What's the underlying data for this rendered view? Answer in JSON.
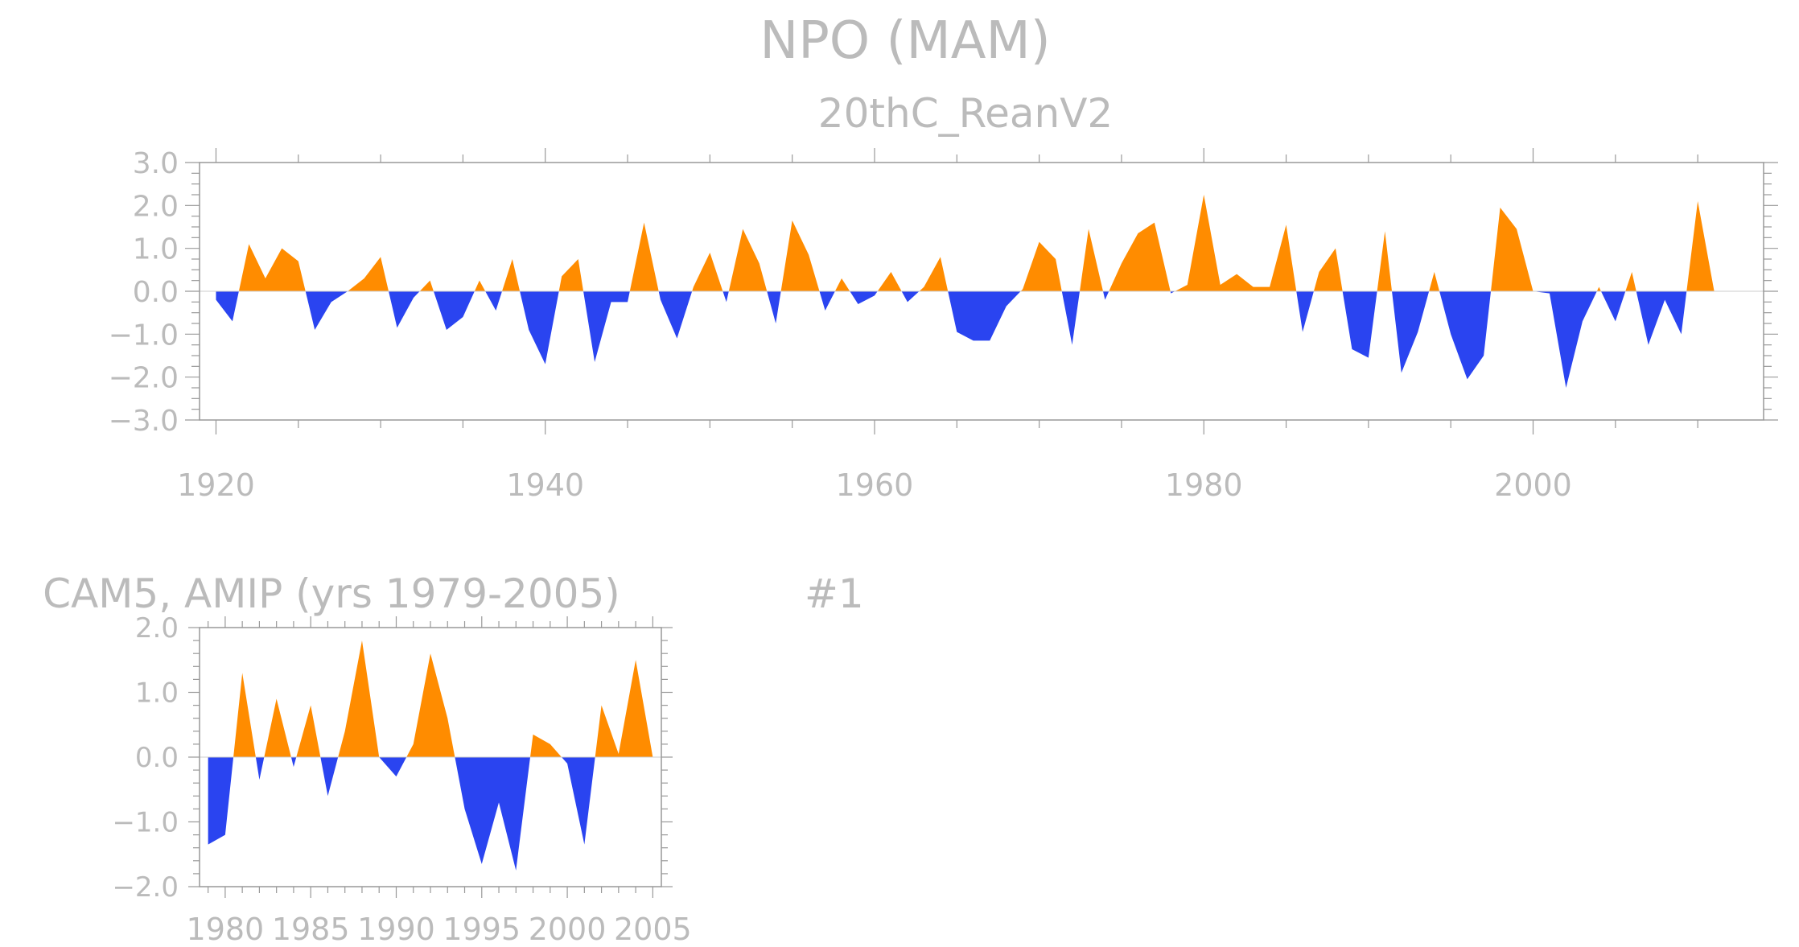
{
  "title": "NPO (MAM)",
  "colors": {
    "positive": "#ff8c00",
    "negative": "#2a44f0",
    "axis": "#999999",
    "text": "#bbbbbb"
  },
  "chart_data": [
    {
      "type": "area",
      "subtitle": "20thC_ReanV2",
      "xlim": [
        1919,
        2014
      ],
      "ylim": [
        -3.0,
        3.0
      ],
      "yticks": [
        "−3.0",
        "−2.0",
        "−1.0",
        "0.0",
        "1.0",
        "2.0",
        "3.0"
      ],
      "xticks": [
        "1920",
        "1940",
        "1960",
        "1980",
        "2000"
      ],
      "x": [
        1920,
        1921,
        1922,
        1923,
        1924,
        1925,
        1926,
        1927,
        1928,
        1929,
        1930,
        1931,
        1932,
        1933,
        1934,
        1935,
        1936,
        1937,
        1938,
        1939,
        1940,
        1941,
        1942,
        1943,
        1944,
        1945,
        1946,
        1947,
        1948,
        1949,
        1950,
        1951,
        1952,
        1953,
        1954,
        1955,
        1956,
        1957,
        1958,
        1959,
        1960,
        1961,
        1962,
        1963,
        1964,
        1965,
        1966,
        1967,
        1968,
        1969,
        1970,
        1971,
        1972,
        1973,
        1974,
        1975,
        1976,
        1977,
        1978,
        1979,
        1980,
        1981,
        1982,
        1983,
        1984,
        1985,
        1986,
        1987,
        1988,
        1989,
        1990,
        1991,
        1992,
        1993,
        1994,
        1995,
        1996,
        1997,
        1998,
        1999,
        2000,
        2001,
        2002,
        2003,
        2004,
        2005,
        2006,
        2007,
        2008,
        2009,
        2010,
        2011,
        2012
      ],
      "values": [
        -0.2,
        -0.7,
        1.1,
        0.3,
        1.0,
        0.7,
        -0.9,
        -0.25,
        0.0,
        0.3,
        0.8,
        -0.85,
        -0.15,
        0.25,
        -0.9,
        -0.6,
        0.25,
        -0.45,
        0.75,
        -0.9,
        -1.7,
        0.35,
        0.75,
        -1.65,
        -0.25,
        -0.25,
        1.6,
        -0.2,
        -1.1,
        0.1,
        0.9,
        -0.25,
        1.45,
        0.65,
        -0.75,
        1.65,
        0.85,
        -0.45,
        0.3,
        -0.3,
        -0.1,
        0.45,
        -0.25,
        0.1,
        0.8,
        -0.95,
        -1.15,
        -1.15,
        -0.35,
        0.05,
        1.15,
        0.75,
        -1.25,
        1.45,
        -0.2,
        0.65,
        1.35,
        1.6,
        -0.05,
        0.15,
        2.25,
        0.15,
        0.4,
        0.1,
        0.1,
        1.55,
        -0.95,
        0.45,
        1.0,
        -1.35,
        -1.55,
        1.4,
        -1.9,
        -0.95,
        0.45,
        -1.0,
        -2.05,
        -1.5,
        1.95,
        1.45,
        0.0,
        -0.05,
        -2.25,
        -0.7,
        0.1,
        -0.7,
        0.45,
        -1.25,
        -0.2,
        -1.0,
        2.1,
        0.0,
        0.0
      ]
    },
    {
      "type": "area",
      "subtitle": "CAM5, AMIP (yrs 1979-2005)",
      "label": "#1",
      "xlim": [
        1978.5,
        2005.5
      ],
      "ylim": [
        -2.0,
        2.0
      ],
      "yticks": [
        "−2.0",
        "−1.0",
        "0.0",
        "1.0",
        "2.0"
      ],
      "xticks": [
        "1980",
        "1985",
        "1990",
        "1995",
        "2000",
        "2005"
      ],
      "x": [
        1979,
        1980,
        1981,
        1982,
        1983,
        1984,
        1985,
        1986,
        1987,
        1988,
        1989,
        1990,
        1991,
        1992,
        1993,
        1994,
        1995,
        1996,
        1997,
        1998,
        1999,
        2000,
        2001,
        2002,
        2003,
        2004,
        2005
      ],
      "values": [
        -1.35,
        -1.2,
        1.3,
        -0.35,
        0.9,
        -0.15,
        0.8,
        -0.6,
        0.4,
        1.8,
        0.0,
        -0.3,
        0.2,
        1.6,
        0.6,
        -0.8,
        -1.65,
        -0.7,
        -1.75,
        0.35,
        0.2,
        -0.1,
        -1.35,
        0.8,
        0.05,
        1.5,
        0.0
      ]
    }
  ]
}
